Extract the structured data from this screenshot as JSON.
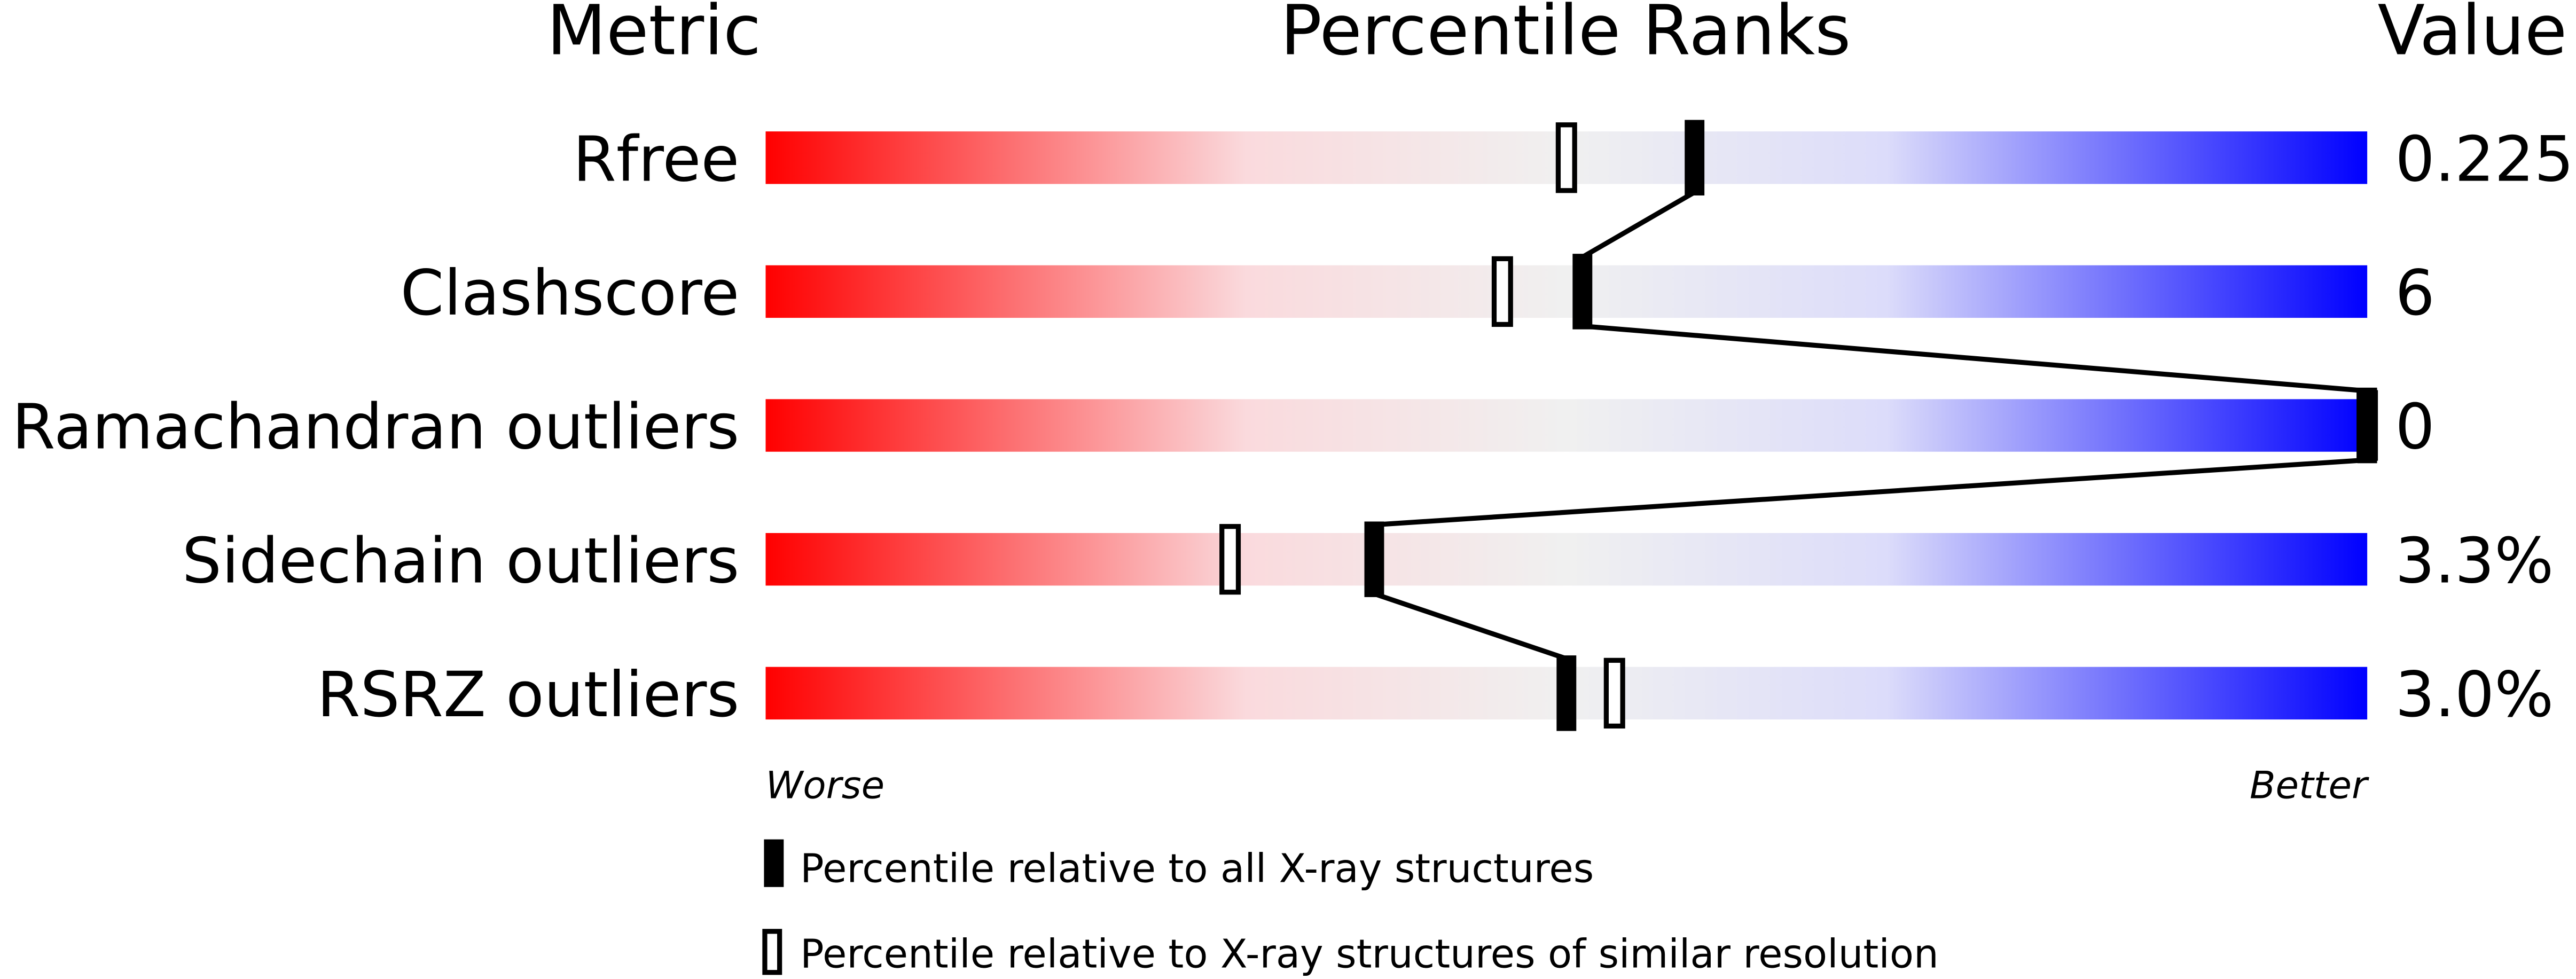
{
  "chart_data": {
    "type": "percentile-slider",
    "headers": {
      "metric": "Metric",
      "ranks": "Percentile Ranks",
      "value": "Value"
    },
    "axis": {
      "min": 0,
      "max": 100,
      "left_label": "Worse",
      "right_label": "Better"
    },
    "gradient_colors": [
      "#ff0000",
      "#fadadd",
      "#f0f0f0",
      "#dcdcfa",
      "#0000ff"
    ],
    "rows": [
      {
        "metric": "Rfree",
        "value": "0.225",
        "percentile_all": 58,
        "percentile_similar": 50
      },
      {
        "metric": "Clashscore",
        "value": "6",
        "percentile_all": 51,
        "percentile_similar": 46
      },
      {
        "metric": "Ramachandran outliers",
        "value": "0",
        "percentile_all": 100,
        "percentile_similar": 100
      },
      {
        "metric": "Sidechain outliers",
        "value": "3.3%",
        "percentile_all": 38,
        "percentile_similar": 29
      },
      {
        "metric": "RSRZ outliers",
        "value": "3.0%",
        "percentile_all": 50,
        "percentile_similar": 53
      }
    ],
    "legend": {
      "all": "Percentile relative to all X-ray structures",
      "similar": "Percentile relative to X-ray structures of similar resolution"
    }
  }
}
